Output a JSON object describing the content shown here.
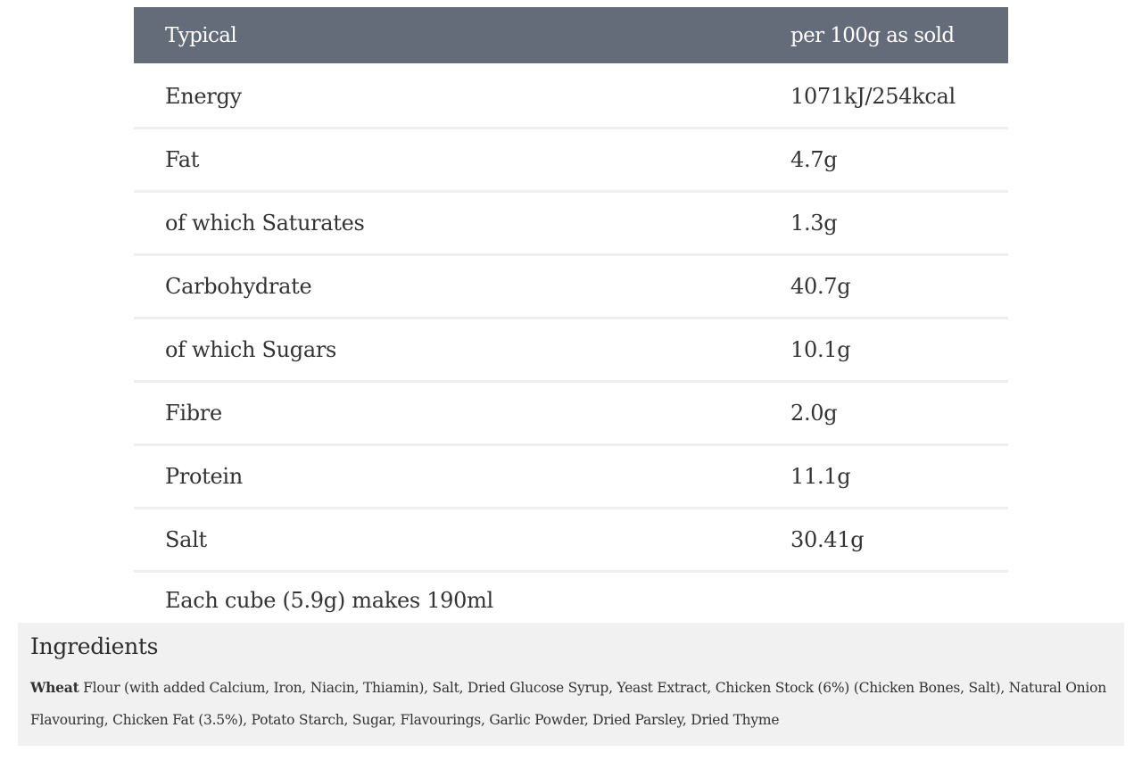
{
  "nutrition_table": {
    "header": {
      "label": "Typical",
      "value": "per 100g as sold"
    },
    "rows": [
      {
        "label": "Energy",
        "value": "1071kJ/254kcal"
      },
      {
        "label": "Fat",
        "value": "4.7g"
      },
      {
        "label": "of which Saturates",
        "value": "1.3g"
      },
      {
        "label": "Carbohydrate",
        "value": "40.7g"
      },
      {
        "label": "of which Sugars",
        "value": "10.1g"
      },
      {
        "label": "Fibre",
        "value": "2.0g"
      },
      {
        "label": "Protein",
        "value": "11.1g"
      },
      {
        "label": "Salt",
        "value": "30.41g"
      }
    ],
    "footnote": "Each cube (5.9g) makes 190ml"
  },
  "ingredients": {
    "title": "Ingredients",
    "allergen": "Wheat",
    "text": " Flour (with added Calcium, Iron, Niacin, Thiamin), Salt, Dried Glucose Syrup, Yeast Extract, Chicken Stock (6%) (Chicken Bones, Salt), Natural Onion Flavouring, Chicken Fat (3.5%), Potato Starch, Sugar, Flavourings, Garlic Powder, Dried Parsley, Dried Thyme"
  }
}
